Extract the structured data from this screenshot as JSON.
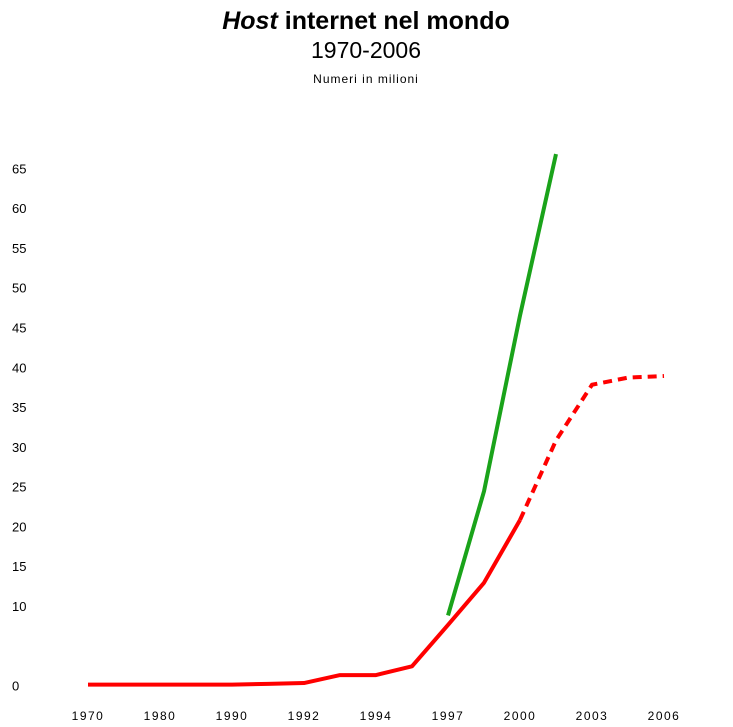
{
  "chart_data": {
    "type": "line",
    "title": {
      "italic": "Host",
      "rest": "internet nel mondo"
    },
    "subtitle": "1970-2006",
    "note": "Numeri in milioni",
    "categories": [
      "1970",
      null,
      "1980",
      null,
      "1990",
      null,
      "1992",
      null,
      "1994",
      null,
      "1997",
      null,
      "2000",
      null,
      "2003",
      null,
      "2006"
    ],
    "series": [
      {
        "color": "#ff0000",
        "dashed": false,
        "values": [
          0.3,
          0.3,
          0.3,
          0.3,
          0.3,
          0.4,
          0.5,
          1.5,
          1.5,
          2.6,
          7.8,
          13.1,
          21,
          null,
          null,
          null,
          null
        ]
      },
      {
        "color": "#ff0000",
        "dashed": true,
        "values": [
          null,
          null,
          null,
          null,
          null,
          null,
          null,
          null,
          null,
          null,
          null,
          null,
          21,
          31,
          38,
          38.9,
          39.1
        ]
      },
      {
        "color": "#1aa31a",
        "dashed": false,
        "values": [
          null,
          null,
          null,
          null,
          null,
          null,
          null,
          null,
          null,
          null,
          9,
          24.6,
          46.7,
          67,
          null,
          null,
          null
        ]
      }
    ],
    "ylim": [
      0,
      65
    ],
    "yticks": [
      0,
      10,
      15,
      20,
      25,
      30,
      35,
      40,
      45,
      50,
      55,
      60,
      65
    ],
    "grid": false
  }
}
